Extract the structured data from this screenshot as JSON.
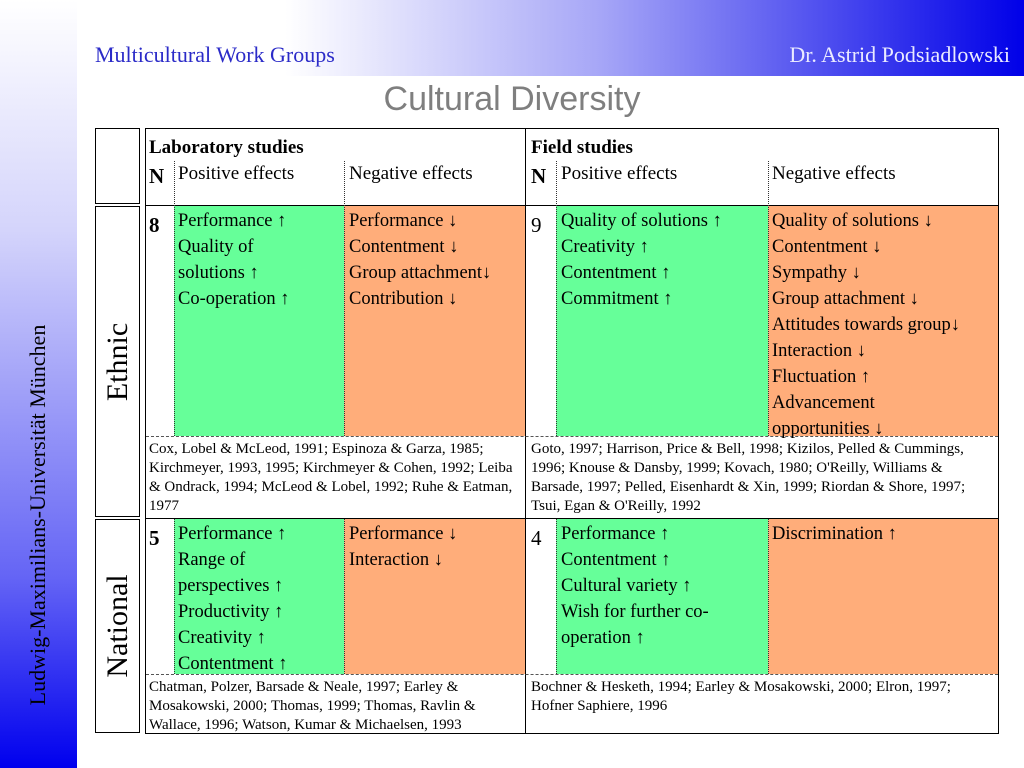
{
  "header": {
    "left": "Multicultural Work Groups",
    "right": "Dr. Astrid Podsiadlowski"
  },
  "sidebar_text": "Ludwig-Maximilians-Universität München",
  "title": "Cultural Diversity",
  "table": {
    "lab_header": "Laboratory studies",
    "field_header": "Field studies",
    "n_label": "N",
    "positive_label": "Positive effects",
    "negative_label": "Negative effects",
    "rows": {
      "ethnic": {
        "label": "Ethnic",
        "lab_n": "8",
        "lab_positive": [
          "Performance ↑",
          "Quality of",
          "solutions ↑",
          "Co-operation ↑"
        ],
        "lab_negative": [
          "Performance ↓",
          "Contentment ↓",
          "Group attachment↓",
          "Contribution ↓"
        ],
        "field_n": "9",
        "field_positive": [
          "Quality of solutions ↑",
          "Creativity ↑",
          "Contentment ↑",
          "Commitment ↑"
        ],
        "field_negative": [
          "Quality of solutions ↓",
          "Contentment ↓",
          "Sympathy ↓",
          "Group attachment ↓",
          "Attitudes towards group↓",
          "Interaction ↓",
          "Fluctuation ↑",
          "Advancement",
          "opportunities ↓"
        ],
        "lab_refs": "Cox, Lobel & McLeod, 1991; Espinoza & Garza, 1985; Kirchmeyer, 1993, 1995; Kirchmeyer & Cohen, 1992; Leiba & Ondrack, 1994; McLeod & Lobel, 1992; Ruhe & Eatman, 1977",
        "field_refs": "Goto, 1997; Harrison, Price & Bell, 1998; Kizilos, Pelled & Cummings, 1996; Knouse & Dansby, 1999; Kovach, 1980; O'Reilly, Williams & Barsade, 1997; Pelled, Eisenhardt & Xin, 1999; Riordan & Shore, 1997; Tsui, Egan & O'Reilly, 1992"
      },
      "national": {
        "label": "National",
        "lab_n": "5",
        "lab_positive": [
          "Performance ↑",
          "Range of",
          "perspectives ↑",
          "Productivity ↑",
          "Creativity ↑",
          "Contentment ↑"
        ],
        "lab_negative": [
          "Performance ↓",
          "Interaction ↓"
        ],
        "field_n": "4",
        "field_positive": [
          "Performance ↑",
          "Contentment ↑",
          "Cultural variety ↑",
          "Wish for further co-",
          "operation ↑"
        ],
        "field_negative": [
          "Discrimination ↑"
        ],
        "lab_refs": "Chatman, Polzer, Barsade & Neale, 1997; Earley & Mosakowski, 2000; Thomas, 1999; Thomas, Ravlin & Wallace, 1996; Watson, Kumar & Michaelsen, 1993",
        "field_refs": "Bochner & Hesketh, 1994; Earley & Mosakowski, 2000; Elron, 1997; Hofner Saphiere, 1996"
      }
    }
  }
}
